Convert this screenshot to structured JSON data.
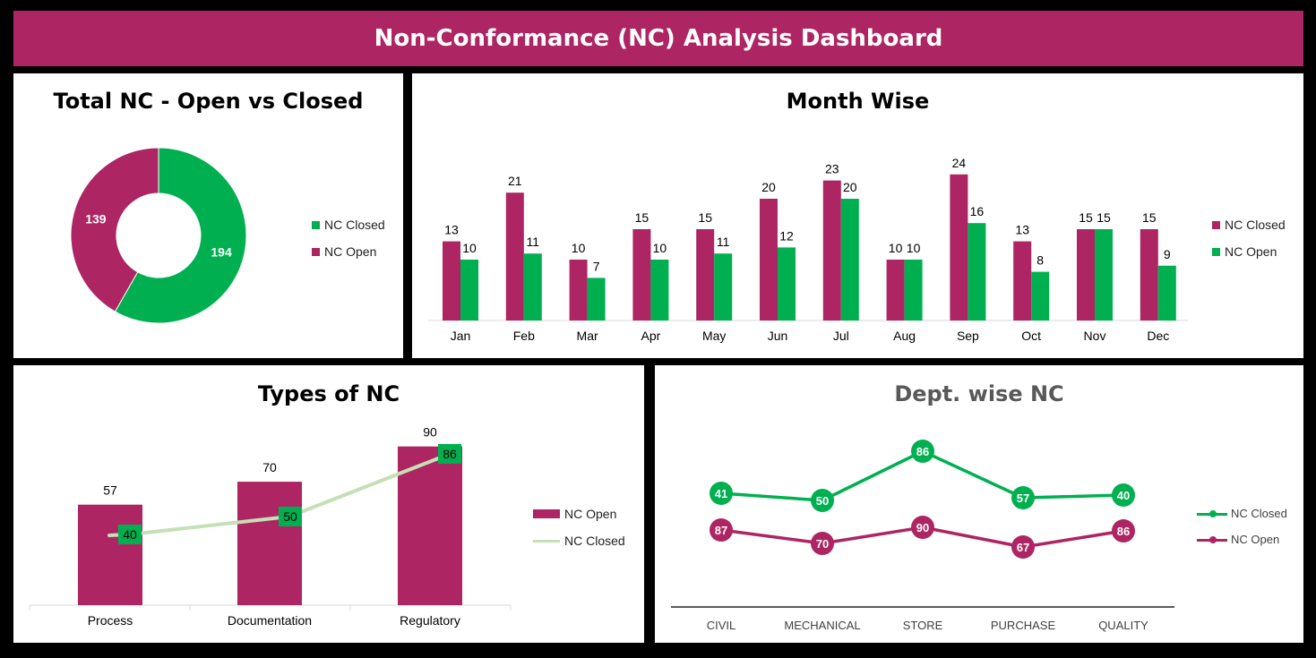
{
  "title": "Non-Conformance (NC) Analysis Dashboard",
  "colors": {
    "open": "#ad2562",
    "closed": "#00b050",
    "closed_light": "#c5e0b4",
    "header": "#ad2562"
  },
  "chart_data": [
    {
      "id": "donut",
      "type": "pie",
      "title": "Total NC - Open vs Closed",
      "series": [
        {
          "name": "NC Closed",
          "value": 194
        },
        {
          "name": "NC Open",
          "value": 139
        }
      ],
      "legend": [
        "NC Closed",
        "NC Open"
      ],
      "legend_position": "right"
    },
    {
      "id": "month",
      "type": "bar",
      "title": "Month Wise",
      "categories": [
        "Jan",
        "Feb",
        "Mar",
        "Apr",
        "May",
        "Jun",
        "Jul",
        "Aug",
        "Sep",
        "Oct",
        "Nov",
        "Dec"
      ],
      "series": [
        {
          "name": "NC Closed",
          "values": [
            13,
            21,
            10,
            15,
            15,
            20,
            23,
            10,
            24,
            13,
            15,
            15
          ]
        },
        {
          "name": "NC Open",
          "values": [
            10,
            11,
            7,
            10,
            11,
            12,
            20,
            10,
            16,
            8,
            15,
            9
          ]
        }
      ],
      "ylim": [
        0,
        24
      ],
      "legend_position": "right"
    },
    {
      "id": "types",
      "type": "bar",
      "title": "Types of NC",
      "categories": [
        "Process",
        "Documentation",
        "Regulatory"
      ],
      "series": [
        {
          "name": "NC Open",
          "values": [
            57,
            70,
            90
          ],
          "kind": "bar"
        },
        {
          "name": "NC Closed",
          "values": [
            40,
            50,
            86
          ],
          "kind": "line"
        }
      ],
      "ylim": [
        0,
        90
      ],
      "legend_position": "right"
    },
    {
      "id": "dept",
      "type": "line",
      "title": "Dept. wise NC",
      "categories": [
        "CIVIL",
        "MECHANICAL",
        "STORE",
        "PURCHASE",
        "QUALITY"
      ],
      "series": [
        {
          "name": "NC Closed",
          "values": [
            41,
            50,
            86,
            57,
            40
          ]
        },
        {
          "name": "NC Open",
          "values": [
            87,
            70,
            90,
            67,
            86
          ]
        }
      ],
      "legend_position": "right"
    }
  ]
}
